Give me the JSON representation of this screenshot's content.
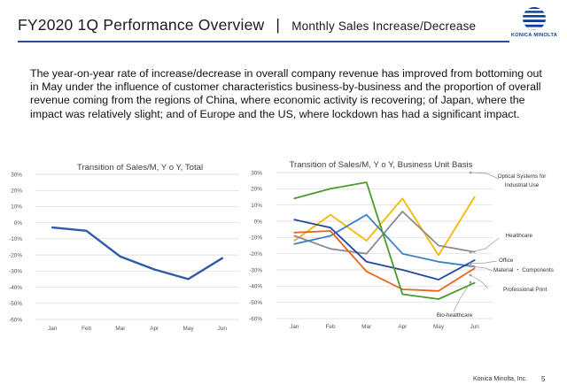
{
  "header": {
    "title": "FY2020 1Q   Performance Overview",
    "separator": "|",
    "subtitle": "Monthly Sales Increase/Decrease"
  },
  "logo": {
    "text": "KONICA MINOLTA",
    "colors": [
      "#0b3f8f",
      "#2f76c8",
      "#9cc5ef"
    ]
  },
  "body_text": "The year-on-year rate of increase/decrease in overall company revenue has improved from bottoming out in May under the influence of customer characteristics business-by-business and the proportion of overall revenue coming from the regions of China, where economic activity is recovering; of Japan, where the impact was relatively slight; and of Europe and the US, where lockdown has had a significant impact.",
  "footer": {
    "company": "Konica Minolta, Inc.",
    "page": "5"
  },
  "chart_data": [
    {
      "type": "line",
      "title": "Transition of Sales/M, Y o Y, Total",
      "categories": [
        "Jan",
        "Feb",
        "Mar",
        "Apr",
        "May",
        "Jun"
      ],
      "ylim": [
        -60,
        30
      ],
      "yticks": [
        30,
        20,
        10,
        0,
        -10,
        -20,
        -30,
        -40,
        -50,
        -60
      ],
      "ytick_labels": [
        "30%",
        "20%",
        "10%",
        "0%",
        "-10%",
        "-20%",
        "-30%",
        "-40%",
        "-50%",
        "-60%"
      ],
      "grid": true,
      "series": [
        {
          "values": [
            -3,
            -5,
            -21,
            -29,
            -35,
            -22
          ],
          "color": "#2e5aa8"
        }
      ]
    },
    {
      "type": "line",
      "title": "Transition of Sales/M, Y o Y, Business Unit Basis",
      "categories": [
        "Jan",
        "Feb",
        "Mar",
        "Apr",
        "May",
        "Jun"
      ],
      "ylim": [
        -60,
        30
      ],
      "yticks": [
        30,
        20,
        10,
        0,
        -10,
        -20,
        -30,
        -40,
        -50,
        -60
      ],
      "ytick_labels": [
        "30%",
        "20%",
        "10%",
        "0%",
        "-10%",
        "-20%",
        "-30%",
        "-40%",
        "-50%",
        "-60%"
      ],
      "grid": true,
      "series": [
        {
          "name": "Optical Systems for Industrial Use",
          "values": [
            -12,
            4,
            -12,
            14,
            -21,
            15
          ],
          "color": "#f5b800"
        },
        {
          "name": "Healthcare",
          "values": [
            -9,
            -17,
            -20,
            6,
            -15,
            -19
          ],
          "color": "#8c8c8c"
        },
        {
          "name": "Office",
          "values": [
            -14,
            -9,
            4,
            -20,
            -25,
            -28
          ],
          "color": "#3b82c4"
        },
        {
          "name": "Material ・ Components",
          "values": [
            -7,
            -6,
            -31,
            -42,
            -43,
            -29
          ],
          "color": "#e8641b"
        },
        {
          "name": "Professional Print",
          "values": [
            1,
            -4,
            -25,
            -30,
            -36,
            -24
          ],
          "color": "#2346a0"
        },
        {
          "name": "Bio-healthcare",
          "values": [
            14,
            20,
            24,
            -45,
            -48,
            -38
          ],
          "color": "#4a9a2e"
        }
      ]
    }
  ]
}
